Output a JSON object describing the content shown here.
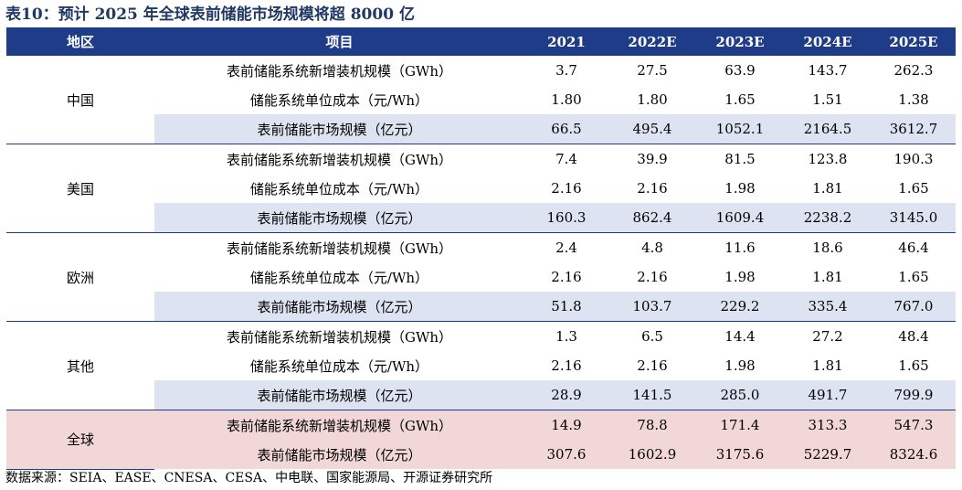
{
  "title": "表10：预计 2025 年全球表前储能市场规模将超 8000 亿",
  "header": {
    "region": "地区",
    "item": "项目",
    "years": [
      "2021",
      "2022E",
      "2023E",
      "2024E",
      "2025E"
    ]
  },
  "groups": [
    {
      "region": "中国",
      "rows": [
        {
          "item": "表前储能系统新增装机规模（GWh）",
          "values": [
            "3.7",
            "27.5",
            "63.9",
            "143.7",
            "262.3"
          ]
        },
        {
          "item": "储能系统单位成本（元/Wh）",
          "values": [
            "1.80",
            "1.80",
            "1.65",
            "1.51",
            "1.38"
          ]
        },
        {
          "item": "表前储能市场规模（亿元）",
          "values": [
            "66.5",
            "495.4",
            "1052.1",
            "2164.5",
            "3612.7"
          ]
        }
      ]
    },
    {
      "region": "美国",
      "rows": [
        {
          "item": "表前储能系统新增装机规模（GWh）",
          "values": [
            "7.4",
            "39.9",
            "81.5",
            "123.8",
            "190.3"
          ]
        },
        {
          "item": "储能系统单位成本（元/Wh）",
          "values": [
            "2.16",
            "2.16",
            "1.98",
            "1.81",
            "1.65"
          ]
        },
        {
          "item": "表前储能市场规模（亿元）",
          "values": [
            "160.3",
            "862.4",
            "1609.4",
            "2238.2",
            "3145.0"
          ]
        }
      ]
    },
    {
      "region": "欧洲",
      "rows": [
        {
          "item": "表前储能系统新增装机规模（GWh）",
          "values": [
            "2.4",
            "4.8",
            "11.6",
            "18.6",
            "46.4"
          ]
        },
        {
          "item": "储能系统单位成本（元/Wh）",
          "values": [
            "2.16",
            "2.16",
            "1.98",
            "1.81",
            "1.65"
          ]
        },
        {
          "item": "表前储能市场规模（亿元）",
          "values": [
            "51.8",
            "103.7",
            "229.2",
            "335.4",
            "767.0"
          ]
        }
      ]
    },
    {
      "region": "其他",
      "rows": [
        {
          "item": "表前储能系统新增装机规模（GWh）",
          "values": [
            "1.3",
            "6.5",
            "14.4",
            "27.2",
            "48.4"
          ]
        },
        {
          "item": "储能系统单位成本（元/Wh）",
          "values": [
            "2.16",
            "2.16",
            "1.98",
            "1.81",
            "1.65"
          ]
        },
        {
          "item": "表前储能市场规模（亿元）",
          "values": [
            "28.9",
            "141.5",
            "285.0",
            "491.7",
            "799.9"
          ]
        }
      ]
    },
    {
      "region": "全球",
      "rows": [
        {
          "item": "表前储能系统新增装机规模（GWh）",
          "values": [
            "14.9",
            "78.8",
            "171.4",
            "313.3",
            "547.3"
          ]
        },
        {
          "item": "表前储能市场规模（亿元）",
          "values": [
            "307.6",
            "1602.9",
            "3175.6",
            "5229.7",
            "8324.6"
          ]
        }
      ]
    }
  ],
  "source": "数据来源：SEIA、EASE、CNESA、CESA、中电联、国家能源局、开源证券研究所",
  "colors": {
    "header_bg": "#1f3c88",
    "highlight_row": "#dde3f0",
    "global_row": "#f2d7d7",
    "title": "#1f3864"
  }
}
